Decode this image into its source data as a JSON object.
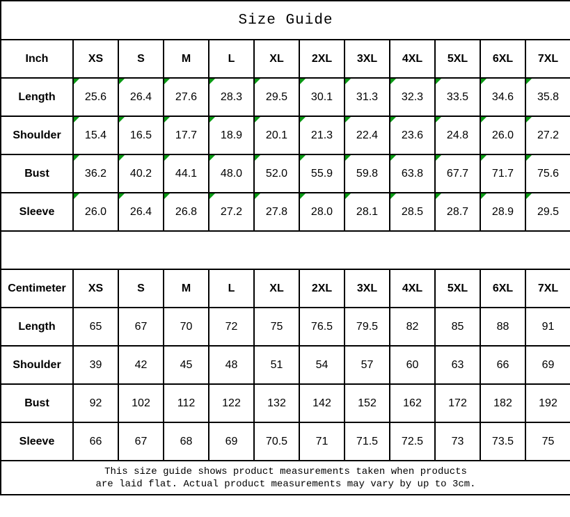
{
  "title": "Size Guide",
  "colors": {
    "corner_marker_green": "#0a9a14",
    "border": "#000000",
    "text": "#000000",
    "background": "#ffffff"
  },
  "sizes": [
    "XS",
    "S",
    "M",
    "L",
    "XL",
    "2XL",
    "3XL",
    "4XL",
    "5XL",
    "6XL",
    "7XL"
  ],
  "sections": [
    {
      "key": "inch",
      "unit_label": "Inch",
      "has_corner_markers": true,
      "rows": [
        {
          "label": "Length",
          "values": [
            "25.6",
            "26.4",
            "27.6",
            "28.3",
            "29.5",
            "30.1",
            "31.3",
            "32.3",
            "33.5",
            "34.6",
            "35.8"
          ]
        },
        {
          "label": "Shoulder",
          "values": [
            "15.4",
            "16.5",
            "17.7",
            "18.9",
            "20.1",
            "21.3",
            "22.4",
            "23.6",
            "24.8",
            "26.0",
            "27.2"
          ]
        },
        {
          "label": "Bust",
          "values": [
            "36.2",
            "40.2",
            "44.1",
            "48.0",
            "52.0",
            "55.9",
            "59.8",
            "63.8",
            "67.7",
            "71.7",
            "75.6"
          ]
        },
        {
          "label": "Sleeve",
          "values": [
            "26.0",
            "26.4",
            "26.8",
            "27.2",
            "27.8",
            "28.0",
            "28.1",
            "28.5",
            "28.7",
            "28.9",
            "29.5"
          ]
        }
      ]
    },
    {
      "key": "centimeter",
      "unit_label": "Centimeter",
      "has_corner_markers": false,
      "rows": [
        {
          "label": "Length",
          "values": [
            "65",
            "67",
            "70",
            "72",
            "75",
            "76.5",
            "79.5",
            "82",
            "85",
            "88",
            "91"
          ]
        },
        {
          "label": "Shoulder",
          "values": [
            "39",
            "42",
            "45",
            "48",
            "51",
            "54",
            "57",
            "60",
            "63",
            "66",
            "69"
          ]
        },
        {
          "label": "Bust",
          "values": [
            "92",
            "102",
            "112",
            "122",
            "132",
            "142",
            "152",
            "162",
            "172",
            "182",
            "192"
          ]
        },
        {
          "label": "Sleeve",
          "values": [
            "66",
            "67",
            "68",
            "69",
            "70.5",
            "71",
            "71.5",
            "72.5",
            "73",
            "73.5",
            "75"
          ]
        }
      ]
    }
  ],
  "footer": {
    "line1": "This size guide shows product measurements taken when products",
    "line2": "are laid flat. Actual product measurements may vary by up to 3cm."
  }
}
